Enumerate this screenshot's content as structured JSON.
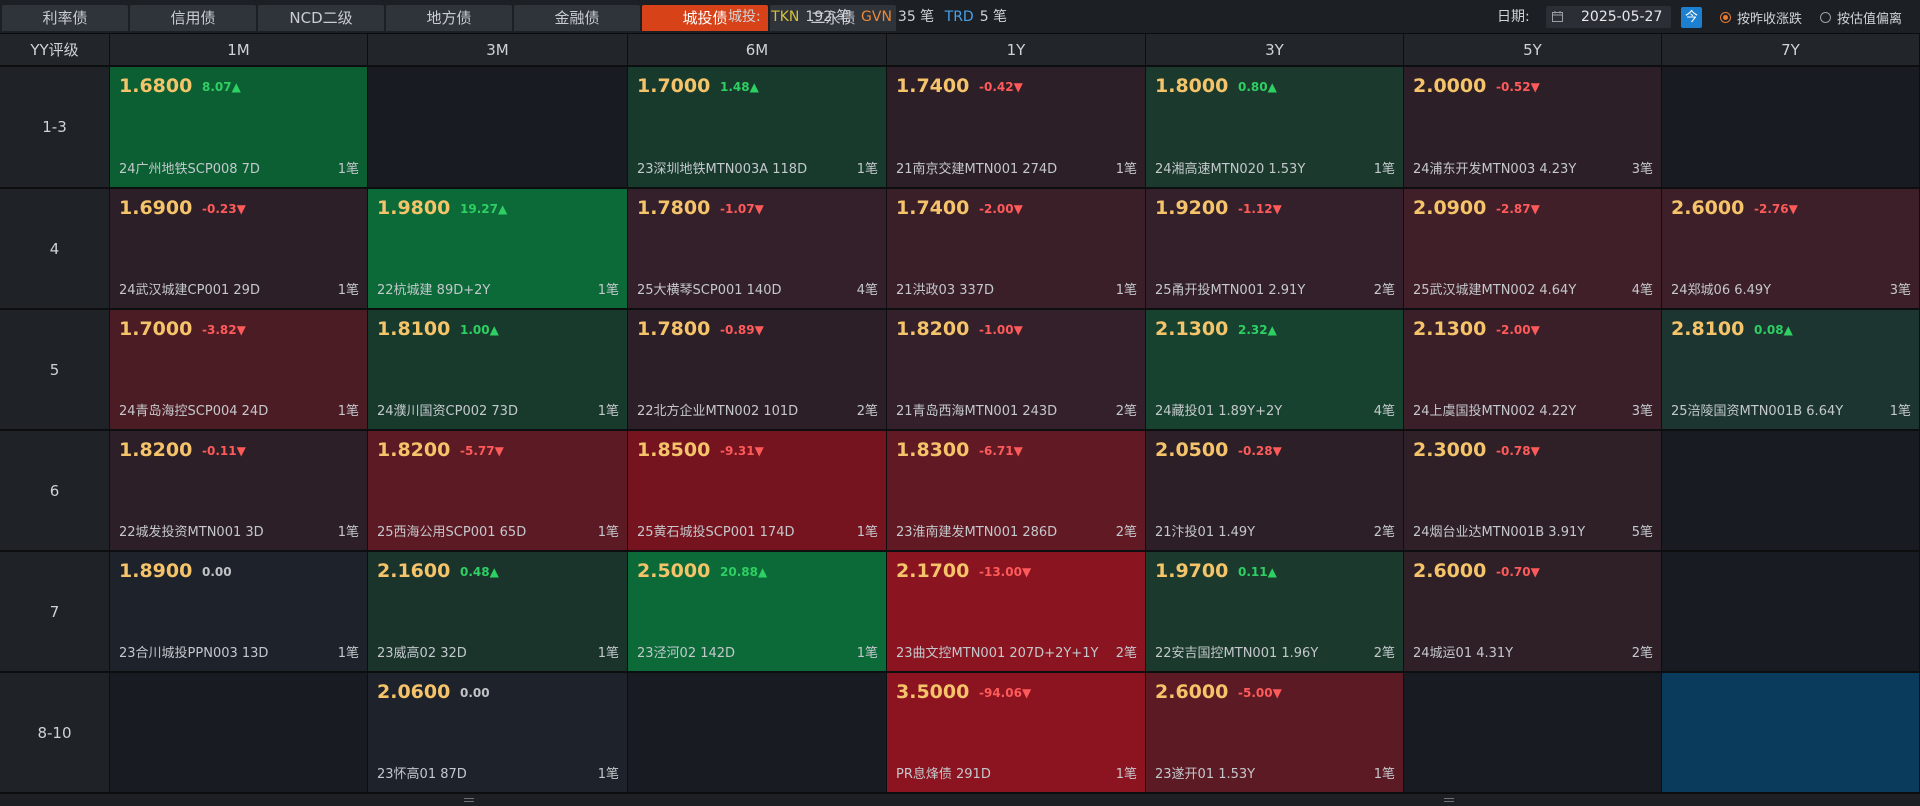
{
  "tabs": [
    "利率债",
    "信用债",
    "NCD二级",
    "地方债",
    "金融债",
    "城投债",
    "二永债"
  ],
  "active_tab": 5,
  "stats": {
    "label": "城投:",
    "tkn": "TKN",
    "tkn_count": "192 笔",
    "gvn": "GVN",
    "gvn_count": "35 笔",
    "trd": "TRD",
    "trd_count": "5 笔"
  },
  "date": {
    "label": "日期:",
    "value": "2025-05-27",
    "today": "今"
  },
  "radios": [
    {
      "label": "按昨收涨跌",
      "checked": true
    },
    {
      "label": "按估值偏离",
      "checked": false
    }
  ],
  "grid": {
    "corner": "YY评级",
    "columns": [
      "1M",
      "3M",
      "6M",
      "1Y",
      "3Y",
      "5Y",
      "7Y"
    ],
    "rows": [
      {
        "label": "1-3",
        "cells": [
          {
            "rate": "1.6800",
            "chg": "8.07▲",
            "dir": "up",
            "bond": "24广州地铁SCP008 7D",
            "n": "1笔",
            "bg": "#0b5f33"
          },
          {
            "empty": true,
            "bg": "#181c22"
          },
          {
            "rate": "1.7000",
            "chg": "1.48▲",
            "dir": "up",
            "bond": "23深圳地铁MTN003A 118D",
            "n": "1笔",
            "bg": "#183a2d"
          },
          {
            "rate": "1.7400",
            "chg": "-0.42▼",
            "dir": "down",
            "bond": "21南京交建MTN001 274D",
            "n": "1笔",
            "bg": "#2d1f27"
          },
          {
            "rate": "1.8000",
            "chg": "0.80▲",
            "dir": "up",
            "bond": "24湘高速MTN020 1.53Y",
            "n": "1笔",
            "bg": "#1b3a2d"
          },
          {
            "rate": "2.0000",
            "chg": "-0.52▼",
            "dir": "down",
            "bond": "24浦东开发MTN003 4.23Y",
            "n": "3笔",
            "bg": "#2d1f27"
          },
          {
            "empty": true,
            "bg": "#181c22"
          }
        ]
      },
      {
        "label": "4",
        "cells": [
          {
            "rate": "1.6900",
            "chg": "-0.23▼",
            "dir": "down",
            "bond": "24武汉城建CP001 29D",
            "n": "1笔",
            "bg": "#2d1f27"
          },
          {
            "rate": "1.9800",
            "chg": "19.27▲",
            "dir": "up",
            "bond": "22杭城建 89D+2Y",
            "n": "1笔",
            "bg": "#0b6a38"
          },
          {
            "rate": "1.7800",
            "chg": "-1.07▼",
            "dir": "down",
            "bond": "25大横琴SCP001 140D",
            "n": "4笔",
            "bg": "#33202a"
          },
          {
            "rate": "1.7400",
            "chg": "-2.00▼",
            "dir": "down",
            "bond": "21洪政03 337D",
            "n": "1笔",
            "bg": "#3a1f29"
          },
          {
            "rate": "1.9200",
            "chg": "-1.12▼",
            "dir": "down",
            "bond": "25甬开投MTN001 2.91Y",
            "n": "2笔",
            "bg": "#33202a"
          },
          {
            "rate": "2.0900",
            "chg": "-2.87▼",
            "dir": "down",
            "bond": "25武汉城建MTN002 4.64Y",
            "n": "4笔",
            "bg": "#401f28"
          },
          {
            "rate": "2.6000",
            "chg": "-2.76▼",
            "dir": "down",
            "bond": "24郑城06 6.49Y",
            "n": "3笔",
            "bg": "#3c1f28"
          }
        ]
      },
      {
        "label": "5",
        "cells": [
          {
            "rate": "1.7000",
            "chg": "-3.82▼",
            "dir": "down",
            "bond": "24青岛海控SCP004 24D",
            "n": "1笔",
            "bg": "#4c1c25"
          },
          {
            "rate": "1.8100",
            "chg": "1.00▲",
            "dir": "up",
            "bond": "24濮川国资CP002 73D",
            "n": "1笔",
            "bg": "#183a2d"
          },
          {
            "rate": "1.7800",
            "chg": "-0.89▼",
            "dir": "down",
            "bond": "22北方企业MTN002 101D",
            "n": "2笔",
            "bg": "#2d1f27"
          },
          {
            "rate": "1.8200",
            "chg": "-1.00▼",
            "dir": "down",
            "bond": "21青岛西海MTN001 243D",
            "n": "2笔",
            "bg": "#33202a"
          },
          {
            "rate": "2.1300",
            "chg": "2.32▲",
            "dir": "up",
            "bond": "24藏投01 1.89Y+2Y",
            "n": "4笔",
            "bg": "#17422f"
          },
          {
            "rate": "2.1300",
            "chg": "-2.00▼",
            "dir": "down",
            "bond": "24上虞国投MTN002 4.22Y",
            "n": "3笔",
            "bg": "#3a1f29"
          },
          {
            "rate": "2.8100",
            "chg": "0.08▲",
            "dir": "up",
            "bond": "25涪陵国资MTN001B 6.64Y",
            "n": "1笔",
            "bg": "#1c3530"
          }
        ]
      },
      {
        "label": "6",
        "cells": [
          {
            "rate": "1.8200",
            "chg": "-0.11▼",
            "dir": "down",
            "bond": "22城发投资MTN001 3D",
            "n": "1笔",
            "bg": "#2d1f27"
          },
          {
            "rate": "1.8200",
            "chg": "-5.77▼",
            "dir": "down",
            "bond": "25西海公用SCP001 65D",
            "n": "1笔",
            "bg": "#5c1a24"
          },
          {
            "rate": "1.8500",
            "chg": "-9.31▼",
            "dir": "down",
            "bond": "25黄石城投SCP001 174D",
            "n": "1笔",
            "bg": "#75141f"
          },
          {
            "rate": "1.8300",
            "chg": "-6.71▼",
            "dir": "down",
            "bond": "23淮南建发MTN001 286D",
            "n": "2笔",
            "bg": "#611a24"
          },
          {
            "rate": "2.0500",
            "chg": "-0.28▼",
            "dir": "down",
            "bond": "21汴投01 1.49Y",
            "n": "2笔",
            "bg": "#2d1f27"
          },
          {
            "rate": "2.3000",
            "chg": "-0.78▼",
            "dir": "down",
            "bond": "24烟台业达MTN001B 3.91Y",
            "n": "5笔",
            "bg": "#2f2028"
          },
          {
            "empty": true,
            "bg": "#181c22"
          }
        ]
      },
      {
        "label": "7",
        "cells": [
          {
            "rate": "1.8900",
            "chg": "0.00",
            "dir": "flat",
            "bond": "23合川城投PPN003 13D",
            "n": "1笔",
            "bg": "#1e222a"
          },
          {
            "rate": "2.1600",
            "chg": "0.48▲",
            "dir": "up",
            "bond": "23威高02 32D",
            "n": "1笔",
            "bg": "#1a342b"
          },
          {
            "rate": "2.5000",
            "chg": "20.88▲",
            "dir": "up",
            "bond": "23泾河02 142D",
            "n": "1笔",
            "bg": "#0b6a38"
          },
          {
            "rate": "2.1700",
            "chg": "-13.00▼",
            "dir": "down",
            "bond": "23曲文控MTN001 207D+2Y+1Y",
            "n": "2笔",
            "bg": "#8a1420"
          },
          {
            "rate": "1.9700",
            "chg": "0.11▲",
            "dir": "up",
            "bond": "22安吉国控MTN001 1.96Y",
            "n": "2笔",
            "bg": "#1b3a2d"
          },
          {
            "rate": "2.6000",
            "chg": "-0.70▼",
            "dir": "down",
            "bond": "24城运01 4.31Y",
            "n": "2笔",
            "bg": "#2f2028"
          },
          {
            "empty": true,
            "bg": "#181c22"
          }
        ]
      },
      {
        "label": "8-10",
        "cells": [
          {
            "empty": true,
            "bg": "#181c22"
          },
          {
            "rate": "2.0600",
            "chg": "0.00",
            "dir": "flat",
            "bond": "23怀高01 87D",
            "n": "1笔",
            "bg": "#1e222a"
          },
          {
            "empty": true,
            "bg": "#181c22"
          },
          {
            "rate": "3.5000",
            "chg": "-94.06▼",
            "dir": "down",
            "bond": "PR息烽债 291D",
            "n": "1笔",
            "bg": "#8c1420"
          },
          {
            "rate": "2.6000",
            "chg": "-5.00▼",
            "dir": "down",
            "bond": "23遂开01 1.53Y",
            "n": "1笔",
            "bg": "#5c1a24"
          },
          {
            "empty": true,
            "bg": "#181c22"
          },
          {
            "empty": true,
            "bg": "#0a3a5c"
          }
        ]
      }
    ]
  }
}
